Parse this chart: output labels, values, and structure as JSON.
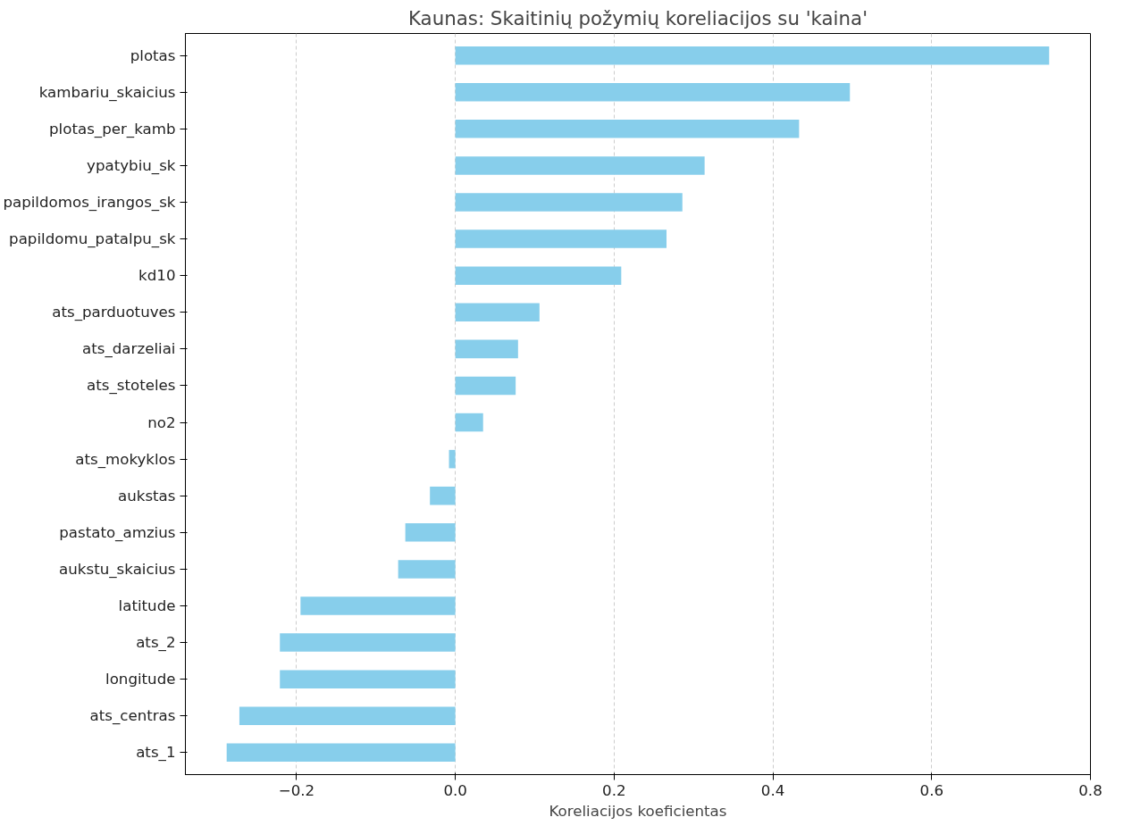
{
  "chart_data": {
    "type": "bar",
    "orientation": "horizontal",
    "title": "Kaunas: Skaitinių požymių koreliacijos su 'kaina'",
    "xlabel": "Koreliacijos koeficientas",
    "categories": [
      "plotas",
      "kambariu_skaicius",
      "plotas_per_kamb",
      "ypatybiu_sk",
      "papildomos_irangos_sk",
      "papildomu_patalpu_sk",
      "kd10",
      "ats_parduotuves",
      "ats_darzeliai",
      "ats_stoteles",
      "no2",
      "ats_mokyklos",
      "aukstas",
      "pastato_amzius",
      "aukstu_skaicius",
      "latitude",
      "ats_2",
      "longitude",
      "ats_centras",
      "ats_1"
    ],
    "values": [
      0.748,
      0.497,
      0.433,
      0.314,
      0.286,
      0.266,
      0.209,
      0.106,
      0.079,
      0.076,
      0.035,
      -0.008,
      -0.032,
      -0.063,
      -0.072,
      -0.195,
      -0.221,
      -0.221,
      -0.272,
      -0.288
    ],
    "color": "#87ceeb",
    "xlim": [
      -0.34,
      0.8
    ],
    "xticks": [
      {
        "value": -0.2,
        "label": "−0.2"
      },
      {
        "value": 0,
        "label": "0.0"
      },
      {
        "value": 0.2,
        "label": "0.2"
      },
      {
        "value": 0.4,
        "label": "0.4"
      },
      {
        "value": 0.6,
        "label": "0.6"
      },
      {
        "value": 0.8,
        "label": "0.8"
      }
    ],
    "grid": "x",
    "line_style": "dashed"
  }
}
